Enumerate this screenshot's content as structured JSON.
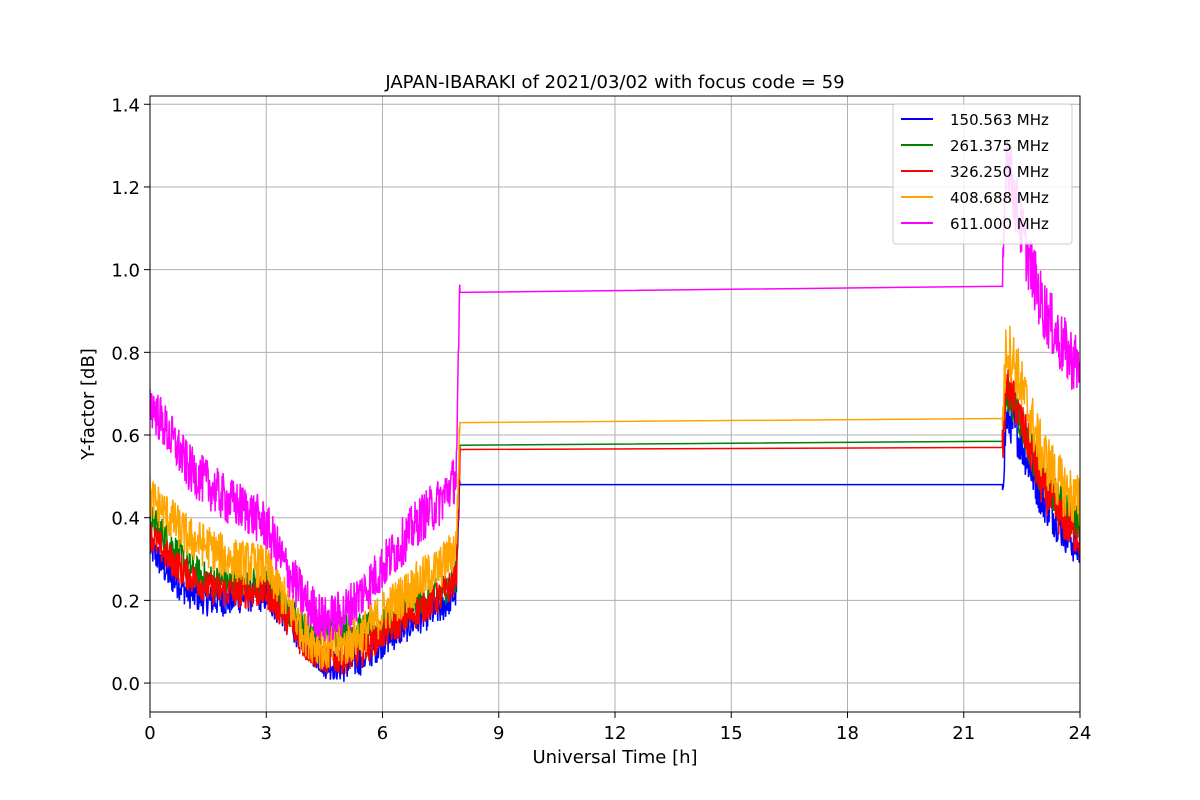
{
  "chart_data": {
    "type": "line",
    "title": "JAPAN-IBARAKI of 2021/03/02 with focus code = 59",
    "xlabel": "Universal Time [h]",
    "ylabel": "Y-factor [dB]",
    "xlim": [
      0,
      24
    ],
    "ylim": [
      -0.07,
      1.42
    ],
    "xticks": [
      0,
      3,
      6,
      9,
      12,
      15,
      18,
      21,
      24
    ],
    "yticks": [
      0.0,
      0.2,
      0.4,
      0.6,
      0.8,
      1.0,
      1.2,
      1.4
    ],
    "grid": true,
    "legend_position": "top-right",
    "gap": [
      8.0,
      22.0
    ],
    "series": [
      {
        "name": "150.563 MHz",
        "color": "#0000ff",
        "x": [
          0,
          0.5,
          1,
          1.5,
          2,
          2.5,
          3,
          3.5,
          4,
          4.5,
          5,
          5.5,
          6,
          6.5,
          7,
          7.5,
          7.9,
          8.0,
          22.0,
          22.1,
          22.3,
          22.6,
          23,
          23.5,
          24
        ],
        "y": [
          0.33,
          0.26,
          0.22,
          0.2,
          0.2,
          0.21,
          0.21,
          0.16,
          0.1,
          0.05,
          0.04,
          0.06,
          0.1,
          0.13,
          0.16,
          0.18,
          0.22,
          0.48,
          0.48,
          0.64,
          0.62,
          0.55,
          0.45,
          0.38,
          0.32
        ],
        "noise": 0.04
      },
      {
        "name": "261.375 MHz",
        "color": "#008000",
        "x": [
          0,
          0.5,
          1,
          1.5,
          2,
          2.5,
          3,
          3.5,
          4,
          4.5,
          5,
          5.5,
          6,
          6.5,
          7,
          7.5,
          7.9,
          8.0,
          22.0,
          22.1,
          22.3,
          22.6,
          23,
          23.5,
          24
        ],
        "y": [
          0.4,
          0.34,
          0.28,
          0.25,
          0.24,
          0.24,
          0.24,
          0.18,
          0.13,
          0.12,
          0.13,
          0.13,
          0.14,
          0.17,
          0.2,
          0.22,
          0.26,
          0.575,
          0.585,
          0.7,
          0.68,
          0.6,
          0.5,
          0.43,
          0.4
        ],
        "noise": 0.04
      },
      {
        "name": "326.250 MHz",
        "color": "#ff0000",
        "x": [
          0,
          0.5,
          1,
          1.5,
          2,
          2.5,
          3,
          3.5,
          4,
          4.5,
          5,
          5.5,
          6,
          6.5,
          7,
          7.5,
          7.9,
          8.0,
          22.0,
          22.1,
          22.3,
          22.6,
          23,
          23.5,
          24
        ],
        "y": [
          0.36,
          0.3,
          0.26,
          0.23,
          0.22,
          0.22,
          0.22,
          0.16,
          0.09,
          0.06,
          0.06,
          0.08,
          0.12,
          0.15,
          0.18,
          0.21,
          0.25,
          0.565,
          0.57,
          0.72,
          0.68,
          0.6,
          0.48,
          0.4,
          0.35
        ],
        "noise": 0.04
      },
      {
        "name": "408.688 MHz",
        "color": "#ffa500",
        "x": [
          0,
          0.5,
          1,
          1.5,
          2,
          2.5,
          3,
          3.5,
          4,
          4.5,
          5,
          5.5,
          6,
          6.5,
          7,
          7.5,
          7.9,
          8.0,
          22.0,
          22.1,
          22.3,
          22.6,
          23,
          23.5,
          24
        ],
        "y": [
          0.45,
          0.4,
          0.35,
          0.33,
          0.3,
          0.29,
          0.28,
          0.2,
          0.12,
          0.08,
          0.09,
          0.12,
          0.17,
          0.21,
          0.25,
          0.28,
          0.33,
          0.63,
          0.64,
          0.82,
          0.78,
          0.68,
          0.56,
          0.48,
          0.43
        ],
        "noise": 0.055
      },
      {
        "name": "611.000 MHz",
        "color": "#ff00ff",
        "x": [
          0,
          0.5,
          1,
          1.5,
          2,
          2.5,
          3,
          3.5,
          4,
          4.5,
          5,
          5.5,
          6,
          6.5,
          7,
          7.5,
          7.9,
          8.0,
          22.0,
          22.1,
          22.3,
          22.6,
          23,
          23.5,
          24
        ],
        "y": [
          0.68,
          0.6,
          0.52,
          0.48,
          0.44,
          0.42,
          0.38,
          0.28,
          0.2,
          0.15,
          0.17,
          0.22,
          0.28,
          0.34,
          0.4,
          0.44,
          0.5,
          0.945,
          0.96,
          1.3,
          1.18,
          1.05,
          0.92,
          0.82,
          0.76
        ],
        "noise": 0.06
      }
    ]
  }
}
